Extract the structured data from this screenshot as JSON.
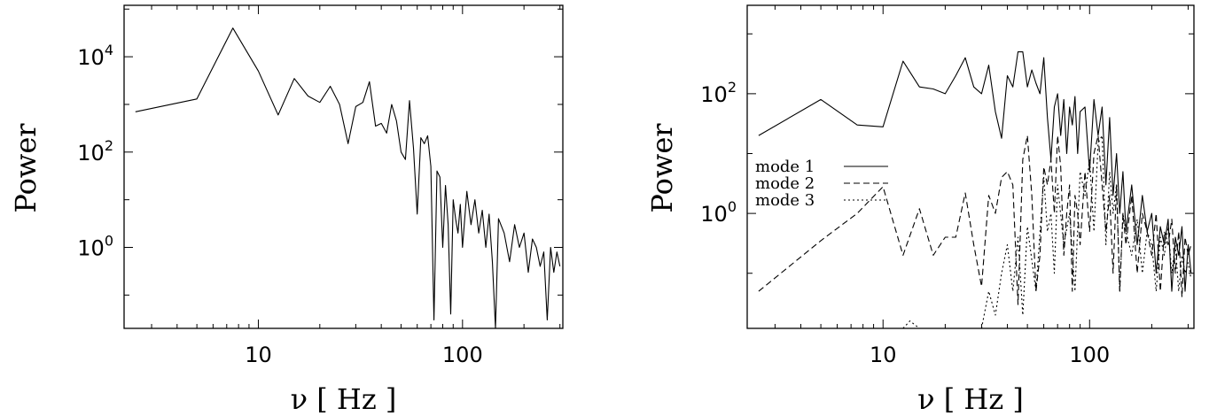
{
  "chart_data": [
    {
      "type": "line",
      "xlabel": "ν [ Hz ]",
      "ylabel": "Power",
      "xscale": "log",
      "yscale": "log",
      "xlim": [
        2.2,
        310
      ],
      "ylim": [
        0.02,
        120000
      ],
      "xticks": [
        {
          "value": 10,
          "label": "10"
        },
        {
          "value": 100,
          "label": "100"
        }
      ],
      "yticks": [
        {
          "value": 1,
          "base": "10",
          "exp": "0"
        },
        {
          "value": 100,
          "base": "10",
          "exp": "2"
        },
        {
          "value": 10000,
          "base": "10",
          "exp": "4"
        }
      ],
      "grid": false,
      "series": [
        {
          "style": "solid",
          "x": [
            2.5,
            5,
            7.5,
            10,
            12.5,
            15,
            17.5,
            20,
            22.5,
            25,
            27.5,
            30,
            32.5,
            35,
            37.5,
            40,
            42.5,
            45,
            47.5,
            50,
            52.5,
            55,
            57.5,
            60,
            62.5,
            65,
            67.5,
            70,
            72.5,
            75,
            77.5,
            80,
            82.5,
            85,
            87.5,
            90,
            92.5,
            95,
            97.5,
            100,
            105,
            110,
            115,
            120,
            125,
            130,
            135,
            140,
            145,
            150,
            160,
            170,
            180,
            190,
            200,
            210,
            220,
            230,
            240,
            250,
            260,
            270,
            280,
            290,
            300
          ],
          "y": [
            700,
            1300,
            40000,
            5000,
            600,
            3500,
            1500,
            1100,
            2400,
            1000,
            150,
            900,
            1100,
            3000,
            350,
            400,
            250,
            1000,
            450,
            100,
            70,
            1200,
            120,
            5,
            200,
            150,
            220,
            50,
            0.03,
            40,
            30,
            1,
            20,
            3,
            0.04,
            10,
            4,
            2,
            8,
            1,
            15,
            3,
            10,
            2,
            6,
            1,
            5,
            0.5,
            0.02,
            4,
            2,
            0.5,
            3,
            1,
            2,
            0.3,
            1.5,
            1,
            0.4,
            0.8,
            0.03,
            1,
            0.3,
            0.8,
            0.4
          ]
        }
      ]
    },
    {
      "type": "line",
      "xlabel": "ν [ Hz ]",
      "ylabel": "Power",
      "xscale": "log",
      "yscale": "log",
      "xlim": [
        2.2,
        320
      ],
      "ylim": [
        0.012,
        3000
      ],
      "xticks": [
        {
          "value": 10,
          "label": "10"
        },
        {
          "value": 100,
          "label": "100"
        }
      ],
      "yticks": [
        {
          "value": 1,
          "base": "10",
          "exp": "0"
        },
        {
          "value": 100,
          "base": "10",
          "exp": "2"
        }
      ],
      "grid": false,
      "legend": "left",
      "series": [
        {
          "name": "mode 1",
          "style": "solid",
          "x": [
            2.5,
            5,
            7.5,
            10,
            12.5,
            15,
            17.5,
            20,
            22.5,
            25,
            27.5,
            30,
            32.5,
            35,
            37.5,
            40,
            42.5,
            45,
            47.5,
            50,
            52.5,
            55,
            57.5,
            60,
            62.5,
            65,
            67.5,
            70,
            72.5,
            75,
            77.5,
            80,
            82.5,
            85,
            87.5,
            90,
            95,
            100,
            105,
            110,
            115,
            120,
            125,
            130,
            135,
            140,
            145,
            150,
            160,
            170,
            180,
            190,
            200,
            210,
            220,
            230,
            240,
            250,
            260,
            270,
            280,
            290,
            300,
            310
          ],
          "y": [
            20,
            80,
            30,
            28,
            350,
            130,
            120,
            100,
            200,
            400,
            130,
            100,
            300,
            50,
            18,
            200,
            130,
            500,
            500,
            130,
            250,
            150,
            100,
            400,
            40,
            8,
            60,
            100,
            20,
            80,
            10,
            60,
            30,
            90,
            10,
            50,
            60,
            5,
            80,
            20,
            60,
            3,
            40,
            2,
            10,
            1,
            5,
            0.5,
            3,
            0.3,
            2,
            0.5,
            1,
            0.1,
            0.6,
            0.3,
            0.8,
            0.05,
            0.4,
            0.2,
            0.6,
            0.05,
            0.3,
            0.1
          ]
        },
        {
          "name": "mode 2",
          "style": "dashed",
          "x": [
            2.5,
            5,
            7.5,
            10,
            12.5,
            15,
            17.5,
            20,
            22.5,
            25,
            27.5,
            30,
            32.5,
            35,
            37.5,
            40,
            42.5,
            45,
            47.5,
            50,
            52.5,
            55,
            57.5,
            60,
            62.5,
            65,
            67.5,
            70,
            72.5,
            75,
            77.5,
            80,
            82.5,
            85,
            87.5,
            90,
            95,
            100,
            105,
            110,
            115,
            120,
            125,
            130,
            135,
            140,
            145,
            150,
            160,
            170,
            180,
            190,
            200,
            210,
            220,
            230,
            240,
            250,
            260,
            270,
            280,
            290,
            300,
            310
          ],
          "y": [
            0.05,
            0.35,
            1,
            2.8,
            0.2,
            1.2,
            0.2,
            0.4,
            0.4,
            2.2,
            0.3,
            0.06,
            2,
            1,
            4,
            5,
            3,
            0.03,
            8,
            20,
            2,
            0.05,
            0.2,
            6,
            3,
            8,
            1,
            20,
            6,
            0.2,
            1,
            3,
            0.05,
            2,
            1,
            0.3,
            5,
            0.5,
            10,
            20,
            3,
            0.5,
            2,
            0.1,
            3,
            0.05,
            1,
            0.3,
            2,
            0.1,
            1,
            0.5,
            0.2,
            1,
            0.05,
            0.5,
            0.3,
            0.8,
            0.1,
            0.5,
            0.04,
            0.4,
            0.2,
            0.3
          ]
        },
        {
          "name": "mode 3",
          "style": "dotted",
          "x": [
            12.5,
            13.5,
            15,
            30,
            32.5,
            35,
            37.5,
            40,
            42.5,
            45,
            47.5,
            50,
            55,
            60,
            62.5,
            65,
            67.5,
            70,
            75,
            80,
            85,
            90,
            95,
            100,
            105,
            110,
            115,
            120,
            125,
            130,
            135,
            140,
            145,
            150,
            160,
            170,
            180,
            190,
            200,
            210,
            220,
            230,
            240,
            250,
            260,
            270,
            280,
            290,
            300,
            310
          ],
          "y": [
            0.012,
            0.016,
            0.012,
            0.012,
            0.05,
            0.02,
            0.1,
            0.3,
            0.05,
            0.4,
            0.02,
            0.6,
            0.05,
            4,
            0.5,
            1,
            0.1,
            3,
            0.3,
            1,
            0.05,
            5,
            2,
            8,
            0.5,
            15,
            20,
            0.3,
            5,
            1,
            3,
            0.05,
            1,
            0.5,
            0.2,
            0.8,
            0.1,
            0.5,
            0.3,
            0.05,
            0.4,
            0.2,
            0.6,
            0.1,
            0.3,
            0.05,
            0.2,
            0.1,
            0.15,
            0.08
          ]
        }
      ]
    }
  ]
}
